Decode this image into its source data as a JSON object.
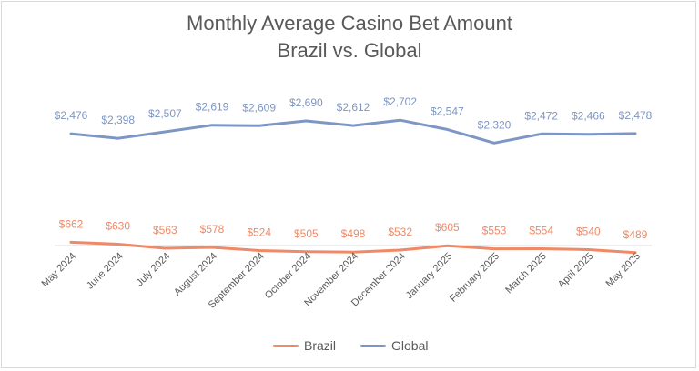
{
  "title_line1": "Monthly Average Casino Bet Amount",
  "title_line2": "Brazil vs. Global",
  "colors": {
    "brazil": "#EE8A67",
    "global": "#7E96C4",
    "text": "#595959",
    "axis": "#D9D9D9"
  },
  "chart_data": {
    "type": "line",
    "title": "Monthly Average Casino Bet Amount Brazil vs. Global",
    "categories": [
      "May 2024",
      "June 2024",
      "July 2024",
      "August 2024",
      "September 2024",
      "October 2024",
      "November 2024",
      "December 2024",
      "January 2025",
      "February 2025",
      "March 2025",
      "April 2025",
      "May 2025"
    ],
    "series": [
      {
        "name": "Brazil",
        "values": [
          662,
          630,
          563,
          578,
          524,
          505,
          498,
          532,
          605,
          553,
          554,
          540,
          489
        ],
        "labels": [
          "$662",
          "$630",
          "$563",
          "$578",
          "$524",
          "$505",
          "$498",
          "$532",
          "$605",
          "$553",
          "$554",
          "$540",
          "$489"
        ]
      },
      {
        "name": "Global",
        "values": [
          2476,
          2398,
          2507,
          2619,
          2609,
          2690,
          2612,
          2702,
          2547,
          2320,
          2472,
          2466,
          2478
        ],
        "labels": [
          "$2,476",
          "$2,398",
          "$2,507",
          "$2,619",
          "$2,609",
          "$2,690",
          "$2,612",
          "$2,702",
          "$2,547",
          "$2,320",
          "$2,472",
          "$2,466",
          "$2,478"
        ]
      }
    ],
    "legend": "bottom",
    "grid": false
  }
}
